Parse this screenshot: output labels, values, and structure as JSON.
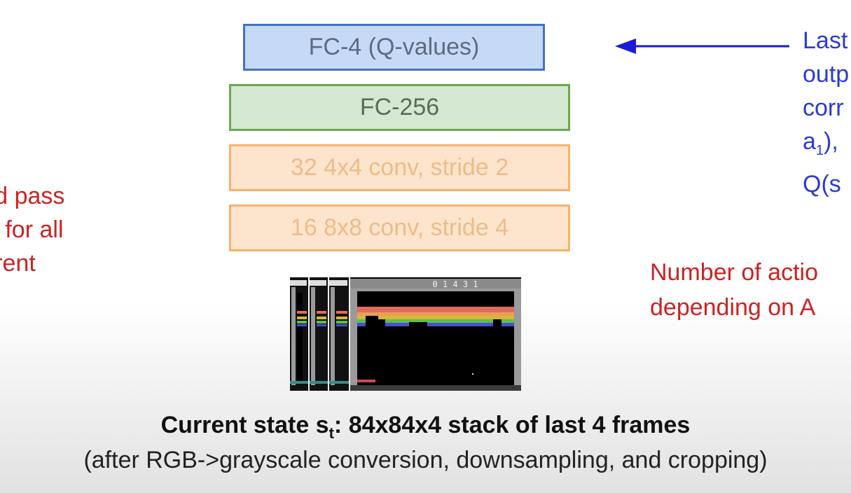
{
  "layers": {
    "fc4": "FC-4 (Q-values)",
    "fc256": "FC-256",
    "conv2": "32 4x4 conv, stride 2",
    "conv1": "16 8x8 conv, stride 4"
  },
  "left_text": {
    "line1": "ard pass",
    "line2": "es for all",
    "line3": "urrent"
  },
  "right_blue": {
    "line1": "Last",
    "line2": "outp",
    "line3": "corr",
    "line4_pre": "a",
    "line4_sub": "1",
    "line4_post": "),",
    "line5_pre": "Q(s"
  },
  "right_red": {
    "line1": "Number of actio",
    "line2": "depending on A"
  },
  "game_screen": {
    "score": "0 1 4  3   1"
  },
  "caption": {
    "main_pre": "Current state s",
    "main_sub": "t",
    "main_post": ": 84x84x4 stack of last 4 frames",
    "detail": "(after RGB->grayscale conversion, downsampling, and cropping)"
  },
  "colors": {
    "fc4_fill": "#c6daf8",
    "fc4_border": "#4472c4",
    "fc_fill": "#d5e9d2",
    "fc_border": "#6aa84f",
    "conv_fill": "#fde5cd",
    "conv_border": "#f6b26b",
    "note_red": "#cc2222",
    "note_blue": "#2a3bd6"
  }
}
